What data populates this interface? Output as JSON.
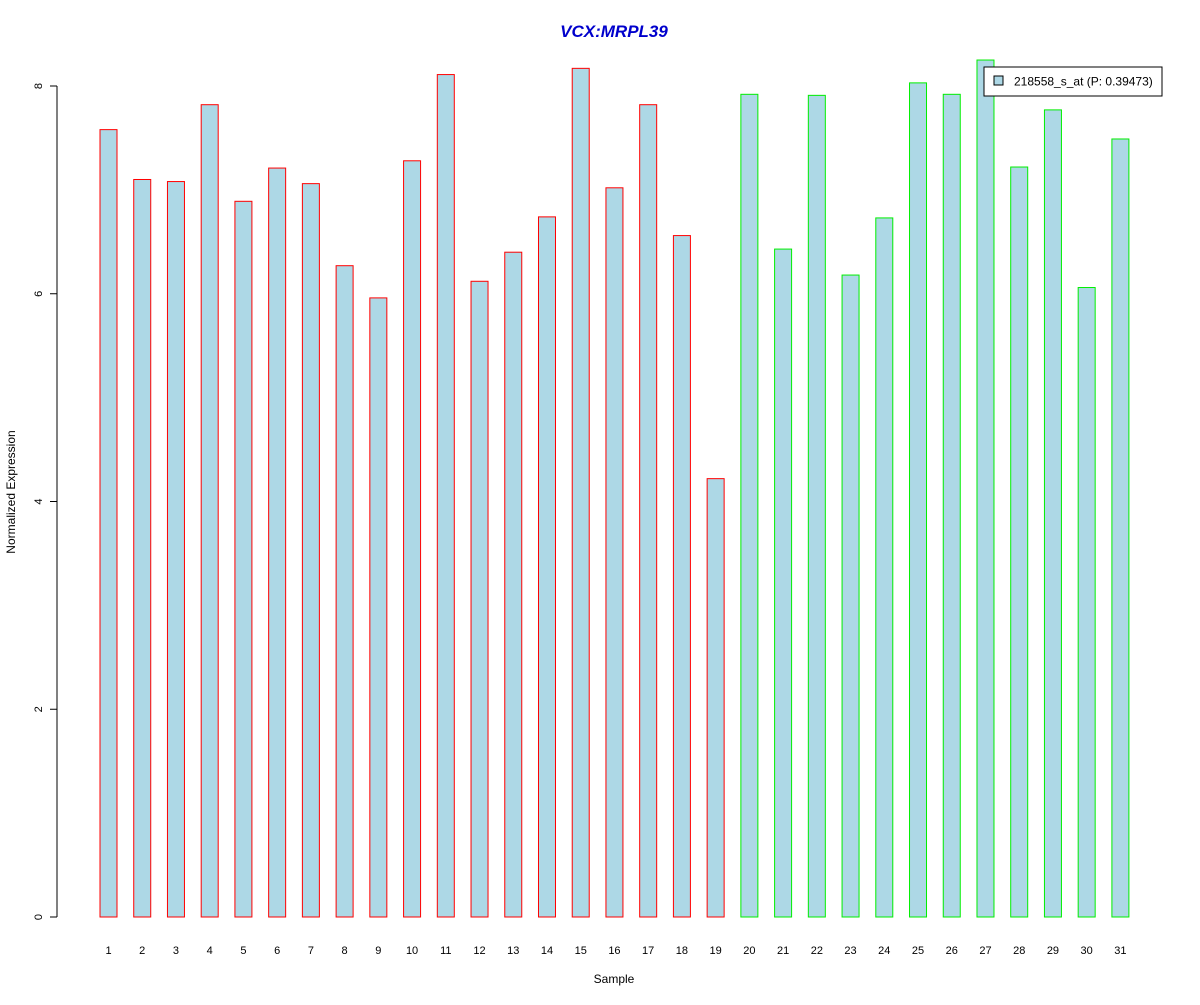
{
  "chart_data": {
    "type": "bar",
    "title": "VCX:MRPL39",
    "xlabel": "Sample",
    "ylabel": "Normalized Expression",
    "ylim": [
      0,
      8.3
    ],
    "yticks": [
      0,
      2,
      4,
      6,
      8
    ],
    "grid": false,
    "legend_position": "top-right",
    "categories": [
      "1",
      "2",
      "3",
      "4",
      "5",
      "6",
      "7",
      "8",
      "9",
      "10",
      "11",
      "12",
      "13",
      "14",
      "15",
      "16",
      "17",
      "18",
      "19",
      "20",
      "21",
      "22",
      "23",
      "24",
      "25",
      "26",
      "27",
      "28",
      "29",
      "30",
      "31"
    ],
    "series": [
      {
        "name": "218558_s_at (P: 0.39473)",
        "values": [
          7.58,
          7.1,
          7.08,
          7.82,
          6.89,
          7.21,
          7.06,
          6.27,
          5.96,
          7.28,
          8.11,
          6.12,
          6.4,
          6.74,
          8.17,
          7.02,
          7.82,
          6.56,
          4.22,
          7.92,
          6.43,
          7.91,
          6.18,
          6.73,
          8.03,
          7.92,
          8.25,
          7.22,
          7.77,
          6.06,
          7.49
        ]
      }
    ],
    "groups": [
      {
        "samples": "1-19",
        "border_color": "#ff0000"
      },
      {
        "samples": "20-31",
        "border_color": "#00ee00"
      }
    ],
    "colors": {
      "bar_fill": "#add8e6",
      "group1_border": "#ff0000",
      "group2_border": "#00ee00",
      "title": "#0000cc"
    }
  }
}
